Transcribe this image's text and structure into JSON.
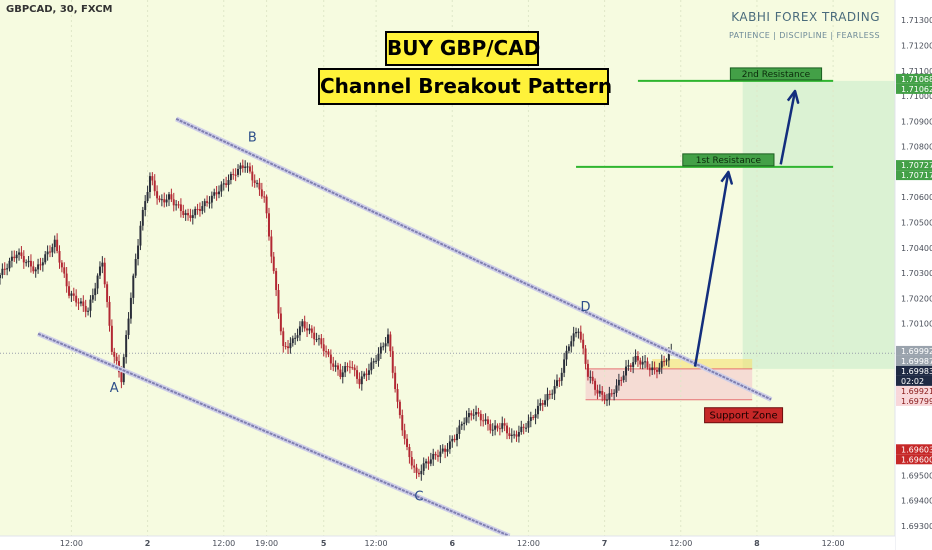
{
  "header": {
    "symbol": "GBPCAD, 30, FXCM",
    "brand_name": "KABHI FOREX TRADING",
    "brand_tagline": "PATIENCE  |  DISCIPLINE  |  FEARLESS"
  },
  "title_lines": [
    "BUY GBP/CAD",
    "Channel Breakout Pattern"
  ],
  "colors": {
    "background": "#f6fbe0",
    "bull_candle": "#2a2e39",
    "bear_candle": "#b22833",
    "channel_line": "#7f7fb0",
    "resistance_line": "#2fb52f",
    "arrow": "#132e7d",
    "support_fill": "#f3b6c6",
    "label_green": "#43a047",
    "label_red": "#c62828"
  },
  "chart_data": {
    "type": "candlestick",
    "y_axis": {
      "ticks": [
        "1.71300",
        "1.71200",
        "1.71100",
        "1.71000",
        "1.70900",
        "1.70800",
        "1.70600",
        "1.70500",
        "1.70400",
        "1.70300",
        "1.70200",
        "1.70100",
        "1.69500",
        "1.69400",
        "1.69300"
      ],
      "ylim": [
        1.6926,
        1.7138
      ],
      "price_labels": [
        {
          "text": "1.71068",
          "value": 1.71068,
          "kind": "green"
        },
        {
          "text": "1.71062",
          "value": 1.71062,
          "kind": "green"
        },
        {
          "text": "1.70727",
          "value": 1.70727,
          "kind": "green"
        },
        {
          "text": "1.70717",
          "value": 1.70717,
          "kind": "green"
        },
        {
          "text": "1.69992",
          "value": 1.69992,
          "kind": "grey"
        },
        {
          "text": "1.69987",
          "value": 1.69987,
          "kind": "grey"
        },
        {
          "text": "1.69983",
          "value": 1.69983,
          "kind": "dark"
        },
        {
          "text": "02:02",
          "value": 1.6995,
          "kind": "dark"
        },
        {
          "text": "1.69921",
          "value": 1.69921,
          "kind": "pink"
        },
        {
          "text": "1.69799",
          "value": 1.69799,
          "kind": "pink"
        },
        {
          "text": "1.69603",
          "value": 1.69603,
          "kind": "red"
        },
        {
          "text": "1.69600",
          "value": 1.696,
          "kind": "red"
        }
      ]
    },
    "x_axis": {
      "xlim": [
        0,
        188
      ],
      "ticks": [
        {
          "label": "12:00",
          "x": 15
        },
        {
          "label": "2",
          "x": 31
        },
        {
          "label": "12:00",
          "x": 47
        },
        {
          "label": "19:00",
          "x": 56
        },
        {
          "label": "5",
          "x": 68
        },
        {
          "label": "12:00",
          "x": 79
        },
        {
          "label": "6",
          "x": 95
        },
        {
          "label": "12:00",
          "x": 111
        },
        {
          "label": "7",
          "x": 127
        },
        {
          "label": "12:00",
          "x": 143
        },
        {
          "label": "8",
          "x": 159
        },
        {
          "label": "12:00",
          "x": 175
        }
      ]
    },
    "price_path": [
      [
        0,
        1.7028
      ],
      [
        4,
        1.7038
      ],
      [
        8,
        1.7031
      ],
      [
        12,
        1.7042
      ],
      [
        15,
        1.7022
      ],
      [
        19,
        1.7015
      ],
      [
        22,
        1.7035
      ],
      [
        24,
        1.7
      ],
      [
        26,
        1.6988
      ],
      [
        28,
        1.7021
      ],
      [
        30,
        1.7049
      ],
      [
        32,
        1.7068
      ],
      [
        34,
        1.7058
      ],
      [
        36,
        1.706
      ],
      [
        40,
        1.7052
      ],
      [
        44,
        1.7058
      ],
      [
        47,
        1.7064
      ],
      [
        50,
        1.707
      ],
      [
        52,
        1.7073
      ],
      [
        54,
        1.7066
      ],
      [
        56,
        1.706
      ],
      [
        58,
        1.703
      ],
      [
        60,
        1.7
      ],
      [
        62,
        1.7003
      ],
      [
        64,
        1.701
      ],
      [
        66,
        1.7006
      ],
      [
        68,
        1.7002
      ],
      [
        70,
        1.6995
      ],
      [
        72,
        1.699
      ],
      [
        74,
        1.6994
      ],
      [
        76,
        1.6987
      ],
      [
        78,
        1.6992
      ],
      [
        80,
        1.6998
      ],
      [
        82,
        1.7005
      ],
      [
        84,
        1.6978
      ],
      [
        86,
        1.696
      ],
      [
        88,
        1.695
      ],
      [
        90,
        1.6955
      ],
      [
        92,
        1.6958
      ],
      [
        94,
        1.696
      ],
      [
        96,
        1.6965
      ],
      [
        98,
        1.6972
      ],
      [
        100,
        1.6975
      ],
      [
        102,
        1.6972
      ],
      [
        104,
        1.6968
      ],
      [
        106,
        1.697
      ],
      [
        108,
        1.6965
      ],
      [
        110,
        1.6968
      ],
      [
        112,
        1.6972
      ],
      [
        114,
        1.6978
      ],
      [
        116,
        1.6982
      ],
      [
        118,
        1.6988
      ],
      [
        120,
        1.7002
      ],
      [
        122,
        1.7008
      ],
      [
        124,
        1.699
      ],
      [
        126,
        1.6983
      ],
      [
        128,
        1.698
      ],
      [
        130,
        1.6985
      ],
      [
        132,
        1.6992
      ],
      [
        134,
        1.6996
      ],
      [
        136,
        1.6994
      ],
      [
        138,
        1.6991
      ],
      [
        140,
        1.6995
      ],
      [
        141,
        1.69983
      ]
    ],
    "channel": {
      "upper": [
        [
          37,
          1.7091
        ],
        [
          162,
          1.698
        ]
      ],
      "lower": [
        [
          8,
          1.7006
        ],
        [
          107,
          1.6926
        ]
      ]
    },
    "resistance_levels": [
      {
        "label": "1st Resistance",
        "value": 1.7072,
        "x_start": 121,
        "x_end": 175
      },
      {
        "label": "2nd Resistance",
        "value": 1.7106,
        "x_start": 134,
        "x_end": 175
      }
    ],
    "support_zone": {
      "label": "Support Zone",
      "low": 1.69799,
      "high": 1.69921,
      "x_start": 123,
      "x_end": 158
    },
    "projection_arrows": [
      {
        "from": [
          146,
          1.6993
        ],
        "to": [
          153,
          1.707
        ]
      },
      {
        "from": [
          164,
          1.7073
        ],
        "to": [
          167,
          1.7102
        ]
      }
    ],
    "point_labels": [
      {
        "label": "A",
        "x": 24,
        "y": 1.6983
      },
      {
        "label": "B",
        "x": 53,
        "y": 1.7082
      },
      {
        "label": "C",
        "x": 88,
        "y": 1.694
      },
      {
        "label": "D",
        "x": 123,
        "y": 1.7015
      }
    ]
  }
}
